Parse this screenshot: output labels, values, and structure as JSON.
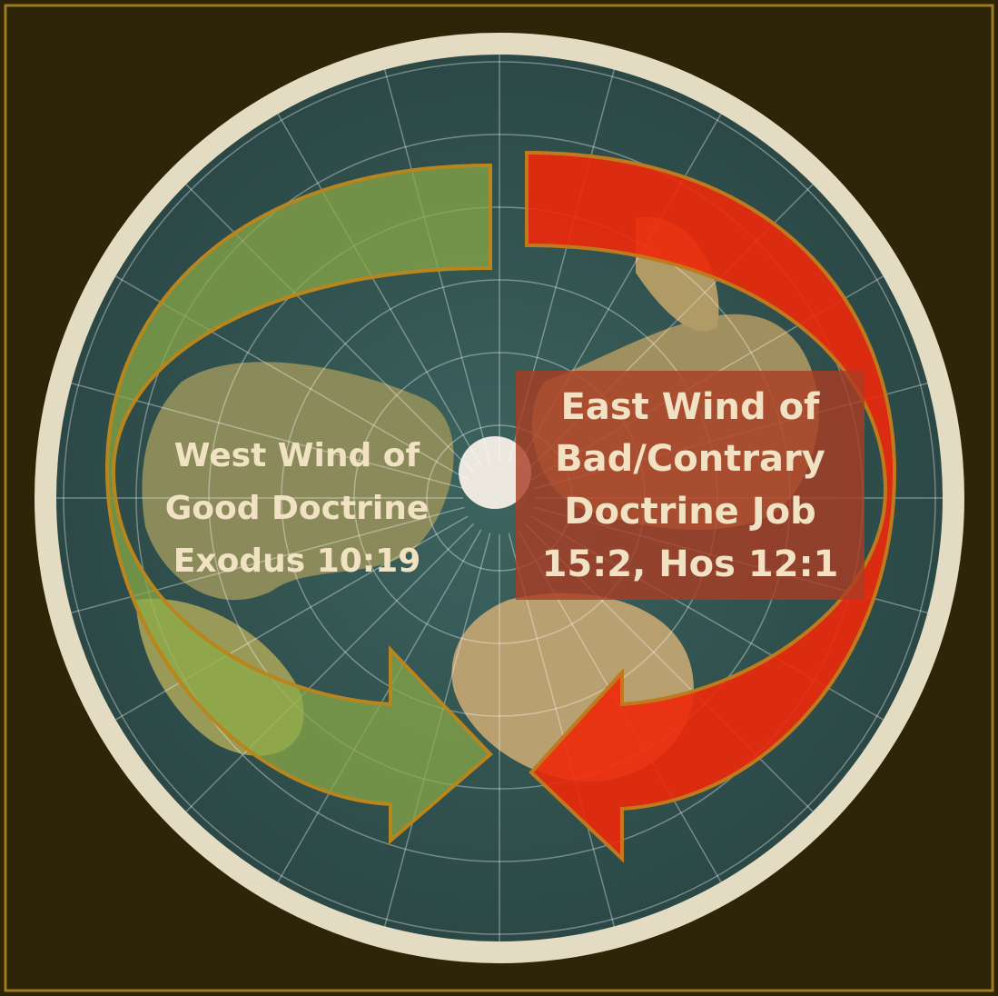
{
  "labels": {
    "west": [
      "West Wind of",
      "Good Doctrine",
      "Exodus 10:19"
    ],
    "east": [
      "East Wind of",
      "Bad/Contrary",
      "Doctrine  Job",
      "15:2, Hos 12:1"
    ]
  }
}
